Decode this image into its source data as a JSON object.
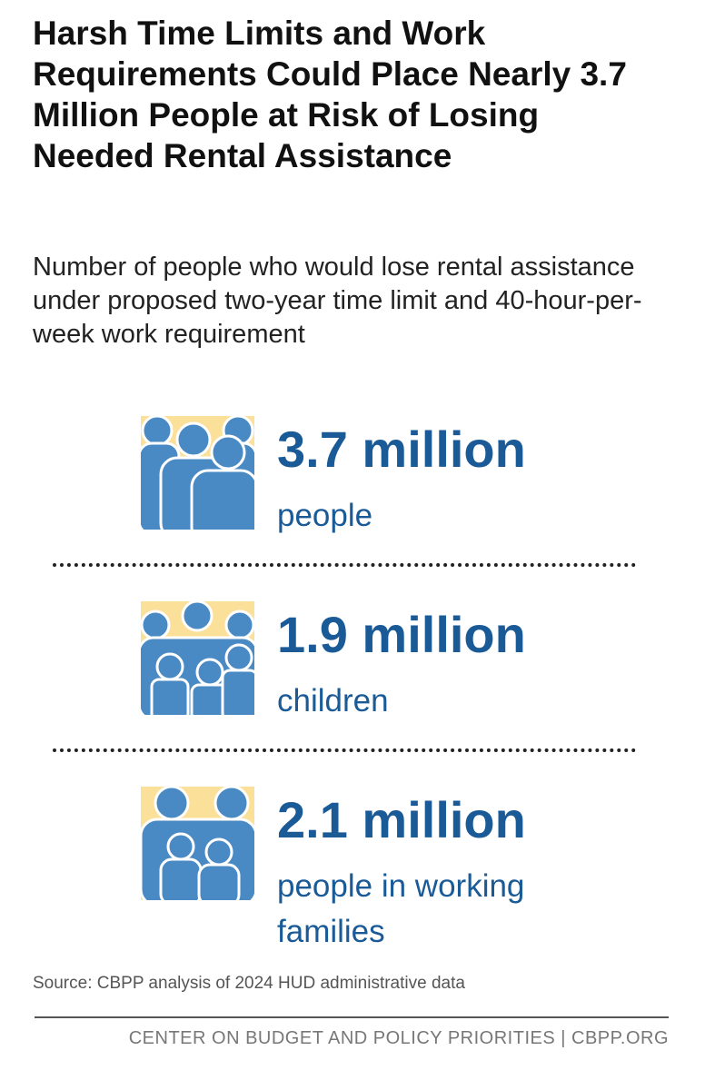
{
  "title": "Harsh Time Limits and Work Requirements Could Place Nearly 3.7 Million People at Risk of Losing Needed Rental Assistance",
  "subtitle": "Number of people who would lose rental assistance under proposed two-year time limit and 40-hour-per-week work requirement",
  "items": [
    {
      "value": "3.7 million",
      "label": "people"
    },
    {
      "value": "1.9 million",
      "label": "children"
    },
    {
      "value": "2.1 million",
      "label": "people in working families"
    }
  ],
  "source": "Source: CBPP analysis of 2024 HUD administrative data",
  "footer": "CENTER ON BUDGET AND POLICY PRIORITIES | CBPP.ORG"
}
